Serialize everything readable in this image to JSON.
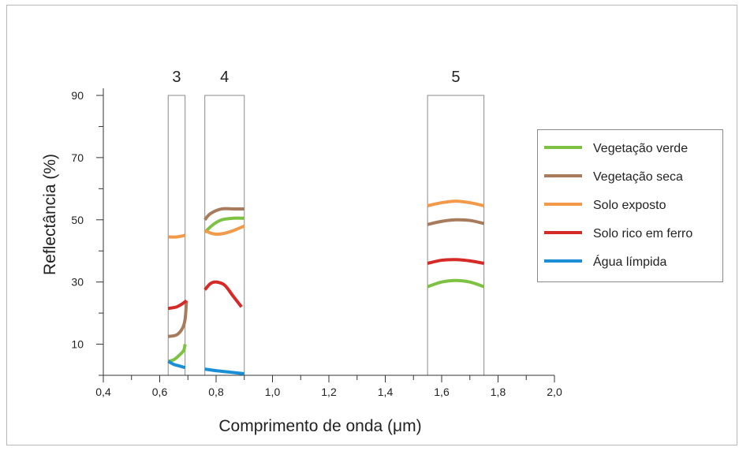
{
  "chart_data": {
    "type": "line",
    "title": "",
    "xlabel": "Comprimento de onda (μm)",
    "ylabel": "Reflectância (%)",
    "xlim": [
      0.4,
      2.0
    ],
    "ylim": [
      0,
      90
    ],
    "x_ticks": [
      0.4,
      0.6,
      0.8,
      1.0,
      1.2,
      1.4,
      1.6,
      1.8,
      2.0
    ],
    "x_tick_labels": [
      "0,4",
      "0,6",
      "0,8",
      "1,0",
      "1,2",
      "1,4",
      "1,6",
      "1,8",
      "2,0"
    ],
    "y_ticks": [
      10,
      30,
      50,
      70,
      90
    ],
    "y_tick_labels": [
      "10",
      "30",
      "50",
      "70",
      "90"
    ],
    "grid": false,
    "legend_position": "right",
    "bands": [
      {
        "label": "3",
        "x_start": 0.63,
        "x_end": 0.69
      },
      {
        "label": "4",
        "x_start": 0.76,
        "x_end": 0.9
      },
      {
        "label": "5",
        "x_start": 1.55,
        "x_end": 1.75
      }
    ],
    "series": [
      {
        "name": "Vegetação verde",
        "color": "#7dc242",
        "segments": [
          [
            [
              0.63,
              4.5
            ],
            [
              0.65,
              5
            ],
            [
              0.67,
              6.5
            ],
            [
              0.685,
              8
            ],
            [
              0.69,
              10
            ]
          ],
          [
            [
              0.76,
              46
            ],
            [
              0.79,
              48.5
            ],
            [
              0.82,
              50
            ],
            [
              0.86,
              50.5
            ],
            [
              0.9,
              50.5
            ]
          ],
          [
            [
              1.55,
              28.5
            ],
            [
              1.6,
              30
            ],
            [
              1.65,
              30.5
            ],
            [
              1.7,
              30
            ],
            [
              1.75,
              28.5
            ]
          ]
        ]
      },
      {
        "name": "Vegetação seca",
        "color": "#a87b5c",
        "segments": [
          [
            [
              0.63,
              12.5
            ],
            [
              0.66,
              13
            ],
            [
              0.68,
              15
            ],
            [
              0.69,
              18
            ],
            [
              0.695,
              24
            ]
          ],
          [
            [
              0.76,
              50
            ],
            [
              0.78,
              52
            ],
            [
              0.82,
              53.5
            ],
            [
              0.86,
              53.5
            ],
            [
              0.9,
              53.5
            ]
          ],
          [
            [
              1.55,
              48.5
            ],
            [
              1.6,
              49.5
            ],
            [
              1.65,
              50
            ],
            [
              1.7,
              49.8
            ],
            [
              1.75,
              48.8
            ]
          ]
        ]
      },
      {
        "name": "Solo exposto",
        "color": "#f39a4a",
        "segments": [
          [
            [
              0.63,
              44.5
            ],
            [
              0.66,
              44.5
            ],
            [
              0.69,
              45
            ]
          ],
          [
            [
              0.76,
              46.5
            ],
            [
              0.79,
              45.5
            ],
            [
              0.82,
              45.5
            ],
            [
              0.86,
              46.5
            ],
            [
              0.9,
              48
            ]
          ],
          [
            [
              1.55,
              54.5
            ],
            [
              1.6,
              55.5
            ],
            [
              1.65,
              56
            ],
            [
              1.7,
              55.5
            ],
            [
              1.75,
              54.5
            ]
          ]
        ]
      },
      {
        "name": "Solo rico em ferro",
        "color": "#d52a26",
        "segments": [
          [
            [
              0.63,
              21.5
            ],
            [
              0.66,
              22
            ],
            [
              0.68,
              23
            ],
            [
              0.695,
              24
            ]
          ],
          [
            [
              0.76,
              27.5
            ],
            [
              0.78,
              29.5
            ],
            [
              0.8,
              30
            ],
            [
              0.83,
              29
            ],
            [
              0.86,
              25.5
            ],
            [
              0.89,
              22
            ]
          ],
          [
            [
              1.55,
              36
            ],
            [
              1.6,
              37
            ],
            [
              1.65,
              37.2
            ],
            [
              1.7,
              36.8
            ],
            [
              1.75,
              36
            ]
          ]
        ]
      },
      {
        "name": "Água límpida",
        "color": "#1a8fd6",
        "segments": [
          [
            [
              0.63,
              4.5
            ],
            [
              0.65,
              3.5
            ],
            [
              0.67,
              3
            ],
            [
              0.69,
              2.5
            ]
          ],
          [
            [
              0.76,
              2
            ],
            [
              0.8,
              1.5
            ],
            [
              0.85,
              1
            ],
            [
              0.9,
              0.5
            ]
          ]
        ]
      }
    ]
  }
}
